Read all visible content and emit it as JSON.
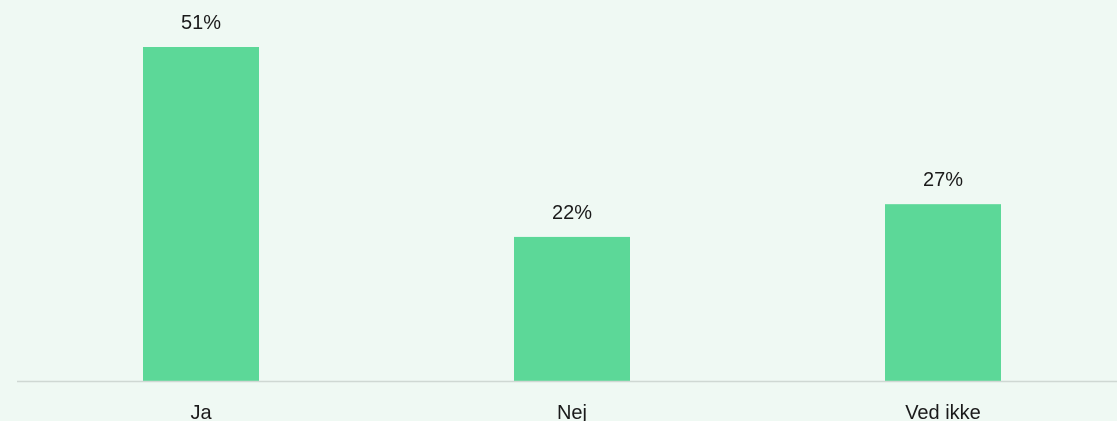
{
  "chart_data": {
    "type": "bar",
    "title": "",
    "xlabel": "",
    "ylabel": "",
    "categories": [
      "Ja",
      "Nej",
      "Ved ikke"
    ],
    "values": [
      51,
      22,
      27
    ],
    "value_labels": [
      "51%",
      "22%",
      "27%"
    ],
    "unit": "%",
    "ylim": [
      0,
      51
    ],
    "grid": false,
    "legend": "none",
    "colors": {
      "bar": "#5cd898",
      "axis": "#cfd8d3",
      "background": "#eff9f3",
      "text": "#1a1a1a"
    }
  }
}
